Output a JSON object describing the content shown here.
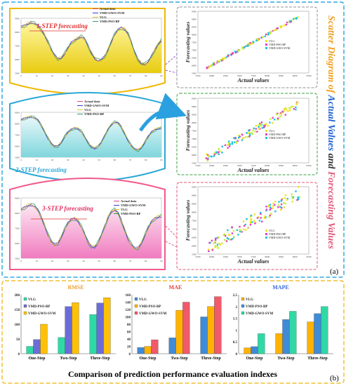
{
  "panel_a": {
    "label": "(a)",
    "side_title": {
      "part1": "Scatter Diagram of ",
      "part2": "Actual Values",
      "part3": " and ",
      "part4": "Forecasting Values"
    },
    "colors": {
      "actual": "#e8408c",
      "gwo": "#3a3ad0",
      "vlg": "#d8c22a",
      "pso": "#2a9a6a",
      "step1_fill_top": "#fff6a0",
      "step1_fill_bottom": "#e8cc10",
      "step2_fill_top": "#e8f8fb",
      "step2_fill_bottom": "#7fd6dc",
      "step3_fill_top": "#fde6f2",
      "step3_fill_bottom": "#f07cc0"
    }
  },
  "line_charts": [
    {
      "title": "1-STEP  forecasting",
      "legend": [
        "Actual data",
        "VMD-GWO-SVM",
        "VLG",
        "VMD-PSO-BP"
      ],
      "y_ticks": [
        "9000",
        "8000",
        "7000",
        "6000",
        "5000"
      ],
      "x_ticks": [
        "0",
        "10",
        "20",
        "30",
        "40",
        "50",
        "60",
        "70",
        "80",
        "90"
      ],
      "values": [
        8350,
        8450,
        8600,
        8700,
        8600,
        8450,
        8200,
        7800,
        7300,
        6700,
        6300,
        6050,
        6100,
        6400,
        6800,
        7200,
        7400,
        7550,
        7650,
        7500,
        7000,
        6500,
        6100,
        5900,
        5950,
        6200,
        6700,
        7300,
        7800,
        8150,
        8300,
        8200,
        7900,
        7200,
        6500,
        6000,
        5700,
        5650,
        5800,
        6200,
        6700,
        7100,
        7400
      ]
    },
    {
      "title": "2-STEP  forecasting",
      "legend": [
        "Actual data",
        "VMD-GWO-SVM",
        "VLG",
        "VMD-PSO-BP"
      ],
      "y_ticks": [
        "9000",
        "8000",
        "7000",
        "6000",
        "5000"
      ],
      "x_ticks": [
        "0",
        "10",
        "20",
        "30",
        "40",
        "50",
        "60",
        "70",
        "80",
        "90"
      ],
      "values": [
        8300,
        8450,
        8550,
        8600,
        8500,
        8300,
        7900,
        7300,
        6700,
        6200,
        5950,
        6000,
        6300,
        6800,
        7200,
        7450,
        7600,
        7550,
        7300,
        6800,
        6300,
        5950,
        5800,
        5900,
        6300,
        6900,
        7500,
        7900,
        8100,
        8050,
        7700,
        7100,
        6500,
        6000,
        5700,
        5650,
        5850,
        6300,
        6800,
        7200,
        7450,
        7550,
        7600
      ]
    },
    {
      "title": "3-STEP  forecasting",
      "legend": [
        "Actual data",
        "VMD-GWO-SVM",
        "VLG",
        "VMD-PSO-BP"
      ],
      "y_ticks": [
        "9000",
        "8000",
        "7000",
        "6000",
        "5000"
      ],
      "x_ticks": [
        "0",
        "10",
        "20",
        "30",
        "40",
        "50",
        "60",
        "70",
        "80",
        "90"
      ],
      "values": [
        8200,
        8350,
        8500,
        8550,
        8450,
        8200,
        7800,
        7200,
        6600,
        6100,
        5900,
        6000,
        6400,
        6900,
        7300,
        7550,
        7650,
        7500,
        7100,
        6600,
        6100,
        5800,
        5750,
        6000,
        6500,
        7100,
        7700,
        8100,
        8200,
        8000,
        7500,
        6900,
        6300,
        5900,
        5650,
        5700,
        6000,
        6500,
        7000,
        7400,
        7650,
        7750,
        7800
      ]
    }
  ],
  "scatter_charts": [
    {
      "xlabel": "Actual values",
      "ylabel": "Forecasting values",
      "legend": [
        "VLG",
        "VMD-PSO-BP",
        "VMD-GWO-SVM"
      ],
      "x_ticks": [
        "5500",
        "6000",
        "6500",
        "7000",
        "7500",
        "8000",
        "8500",
        "9000",
        "9500"
      ],
      "y_ticks": [
        "9500",
        "9000",
        "8500",
        "8000",
        "7500",
        "7000",
        "6500",
        "6000",
        "5500"
      ],
      "range": [
        5500,
        9500
      ],
      "spread": 60
    },
    {
      "xlabel": "Actual values",
      "ylabel": "Forecasting values",
      "legend": [
        "VLG",
        "VMD-PSO-BP",
        "VMD-GWO-SVM"
      ],
      "x_ticks": [
        "5500",
        "6000",
        "6500",
        "7000",
        "7500",
        "8000",
        "8500",
        "9000",
        "9500"
      ],
      "y_ticks": [
        "9500",
        "9000",
        "8500",
        "8000",
        "7500",
        "7000",
        "6500",
        "6000",
        "5500"
      ],
      "range": [
        5500,
        9500
      ],
      "spread": 230
    },
    {
      "xlabel": "Actual values",
      "ylabel": "Forecasting values",
      "legend": [
        "VLG",
        "VMD-PSO-BP",
        "VMD-GWO-SVM"
      ],
      "x_ticks": [
        "5500",
        "6000",
        "6500",
        "7000",
        "7500",
        "8000",
        "8500",
        "9000",
        "9500"
      ],
      "y_ticks": [
        "9500",
        "9000",
        "8500",
        "8000",
        "7500",
        "7000",
        "6500",
        "6000",
        "5500"
      ],
      "range": [
        5500,
        9500
      ],
      "spread": 380
    }
  ],
  "panel_b": {
    "label": "(b)",
    "caption": "Comparison of prediction performance evaluation indexes"
  },
  "chart_data": [
    {
      "type": "bar",
      "title": "RMSE",
      "categories": [
        "One-Step",
        "Two-Step",
        "Three-Step"
      ],
      "series": [
        {
          "name": "VLG",
          "color": "#2fd9a6",
          "values": [
            25,
            55,
            133
          ]
        },
        {
          "name": "VMD-PSO-BP",
          "color": "#6c6cd8",
          "values": [
            48,
            160,
            172
          ]
        },
        {
          "name": "VMD-GWO-SVM",
          "color": "#ffc107",
          "values": [
            100,
            173,
            190
          ]
        }
      ],
      "ylim": [
        0,
        200
      ],
      "y_ticks": [
        "200",
        "150",
        "100",
        "50",
        "0"
      ],
      "legend_position": "top-left",
      "title_color": "#f0a030"
    },
    {
      "type": "bar",
      "title": "MAE",
      "categories": [
        "One-Step",
        "Two-Step",
        "Three-Step"
      ],
      "series": [
        {
          "name": "VLG",
          "color": "#3f8bd8",
          "values": [
            17,
            43,
            100
          ]
        },
        {
          "name": "VMD-PSO-BP",
          "color": "#ffb300",
          "values": [
            20,
            118,
            128
          ]
        },
        {
          "name": "VMD-GWO-SVM",
          "color": "#f05a6a",
          "values": [
            38,
            140,
            155
          ]
        }
      ],
      "ylim": [
        0,
        160
      ],
      "y_ticks": [
        "160",
        "140",
        "120",
        "100",
        "80",
        "60",
        "40",
        "20",
        "0"
      ],
      "legend_position": "top-left",
      "title_color": "#e84040"
    },
    {
      "type": "bar",
      "title": "MAPE",
      "categories": [
        "One-Step",
        "Two-Step",
        "Three-Step"
      ],
      "series": [
        {
          "name": "VLG",
          "color": "#ffb300",
          "values": [
            0.25,
            0.85,
            1.35
          ]
        },
        {
          "name": "VMD-PSO-BP",
          "color": "#3f8bd8",
          "values": [
            0.3,
            1.45,
            1.7
          ]
        },
        {
          "name": "VMD-GWO-SVM",
          "color": "#2fd9a6",
          "values": [
            0.85,
            1.8,
            2.0
          ]
        }
      ],
      "ylim": [
        0,
        2.5
      ],
      "y_ticks": [
        "2.5",
        "2",
        "1.5",
        "1",
        "0.5",
        "0"
      ],
      "legend_position": "top-left",
      "title_color": "#3a6ad8"
    }
  ]
}
